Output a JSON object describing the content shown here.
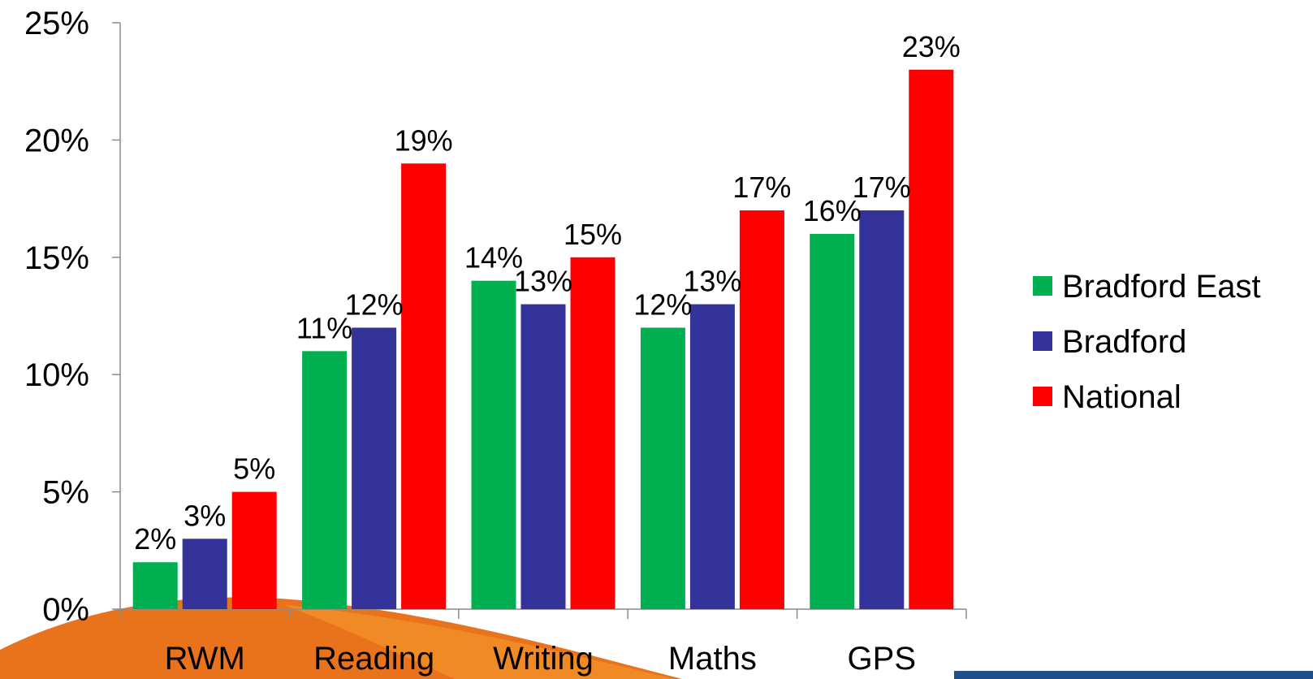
{
  "chart_data": {
    "type": "bar",
    "categories": [
      "RWM",
      "Reading",
      "Writing",
      "Maths",
      "GPS"
    ],
    "series": [
      {
        "name": "Bradford East",
        "values": [
          2,
          11,
          14,
          12,
          16
        ],
        "color": "#00B050"
      },
      {
        "name": "Bradford",
        "values": [
          3,
          12,
          13,
          13,
          17
        ],
        "color": "#333399"
      },
      {
        "name": "National",
        "values": [
          5,
          19,
          15,
          17,
          23
        ],
        "color": "#FF0000"
      }
    ],
    "value_suffix": "%",
    "ylim": [
      0,
      25
    ],
    "yticks": [
      0,
      5,
      10,
      15,
      20,
      25
    ],
    "ytick_labels": [
      "0%",
      "5%",
      "10%",
      "15%",
      "20%",
      "25%"
    ],
    "title": "",
    "xlabel": "",
    "ylabel": "",
    "grid": false,
    "legend_position": "right"
  },
  "decoration": {
    "swoosh_orange": "#F08A24",
    "swoosh_dark": "#E8731C",
    "corner_bar_color": "#1F4E8C"
  }
}
